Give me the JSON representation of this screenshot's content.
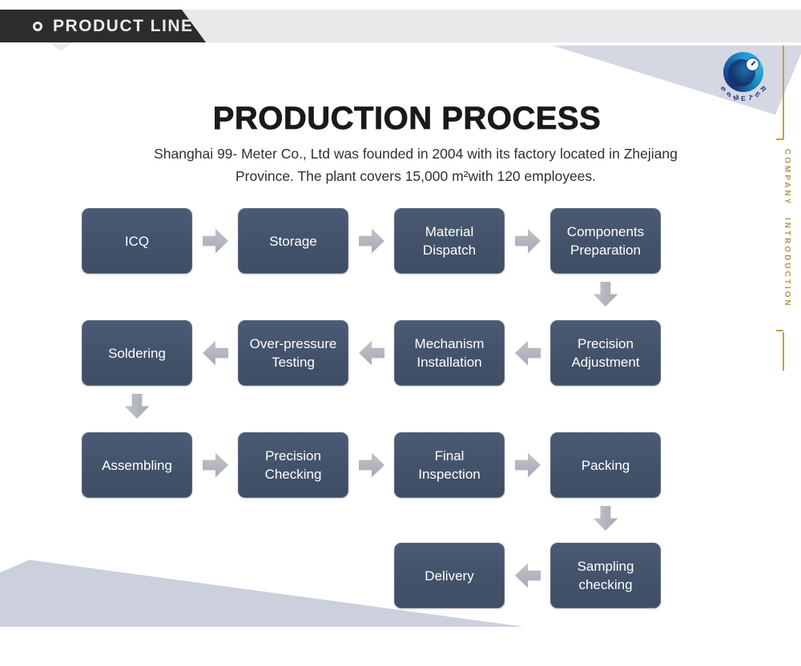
{
  "header": {
    "banner_label": "PRODUCT LINE"
  },
  "logo": {
    "arc_text": "99METER"
  },
  "side_panel": {
    "vertical_text": "COMPANY INTRODUCTION"
  },
  "main": {
    "title": "PRODUCTION PROCESS",
    "subtitle_line1": "Shanghai 99- Meter Co., Ltd was founded in 2004 with its factory located in Zhejiang",
    "subtitle_line2": "Province. The plant covers 15,000 m²with 120 employees."
  },
  "flowchart": {
    "rows": [
      {
        "flow": "right",
        "cells": [
          {
            "col": 0,
            "label": "ICQ"
          },
          {
            "col": 1,
            "label": "Storage"
          },
          {
            "col": 2,
            "label": "Material Dispatch"
          },
          {
            "col": 3,
            "label": "Components Preparation"
          }
        ],
        "down_connector_col": 3
      },
      {
        "flow": "left",
        "cells": [
          {
            "col": 0,
            "label": "Soldering"
          },
          {
            "col": 1,
            "label": "Over-pressure Testing"
          },
          {
            "col": 2,
            "label": "Mechanism Installation"
          },
          {
            "col": 3,
            "label": "Precision Adjustment"
          }
        ],
        "down_connector_col": 0
      },
      {
        "flow": "right",
        "cells": [
          {
            "col": 0,
            "label": "Assembling"
          },
          {
            "col": 1,
            "label": "Precision Checking"
          },
          {
            "col": 2,
            "label": "Final Inspection"
          },
          {
            "col": 3,
            "label": "Packing"
          }
        ],
        "down_connector_col": 3
      },
      {
        "flow": "left",
        "cells": [
          {
            "col": 2,
            "label": "Delivery"
          },
          {
            "col": 3,
            "label": "Sampling checking"
          }
        ],
        "down_connector_col": null
      }
    ]
  },
  "colors": {
    "box_fill": "#42526a",
    "arrow_gray": "#aaadb5",
    "banner_black": "#2c2c2e",
    "band_gray": "#e9e9ec",
    "corner_gray_top": "#d5d8e2",
    "corner_gray_bottom": "#ccd0dc",
    "gold": "#bfa050",
    "logo_navy": "#14316f",
    "logo_cyan": "#2db9da"
  }
}
